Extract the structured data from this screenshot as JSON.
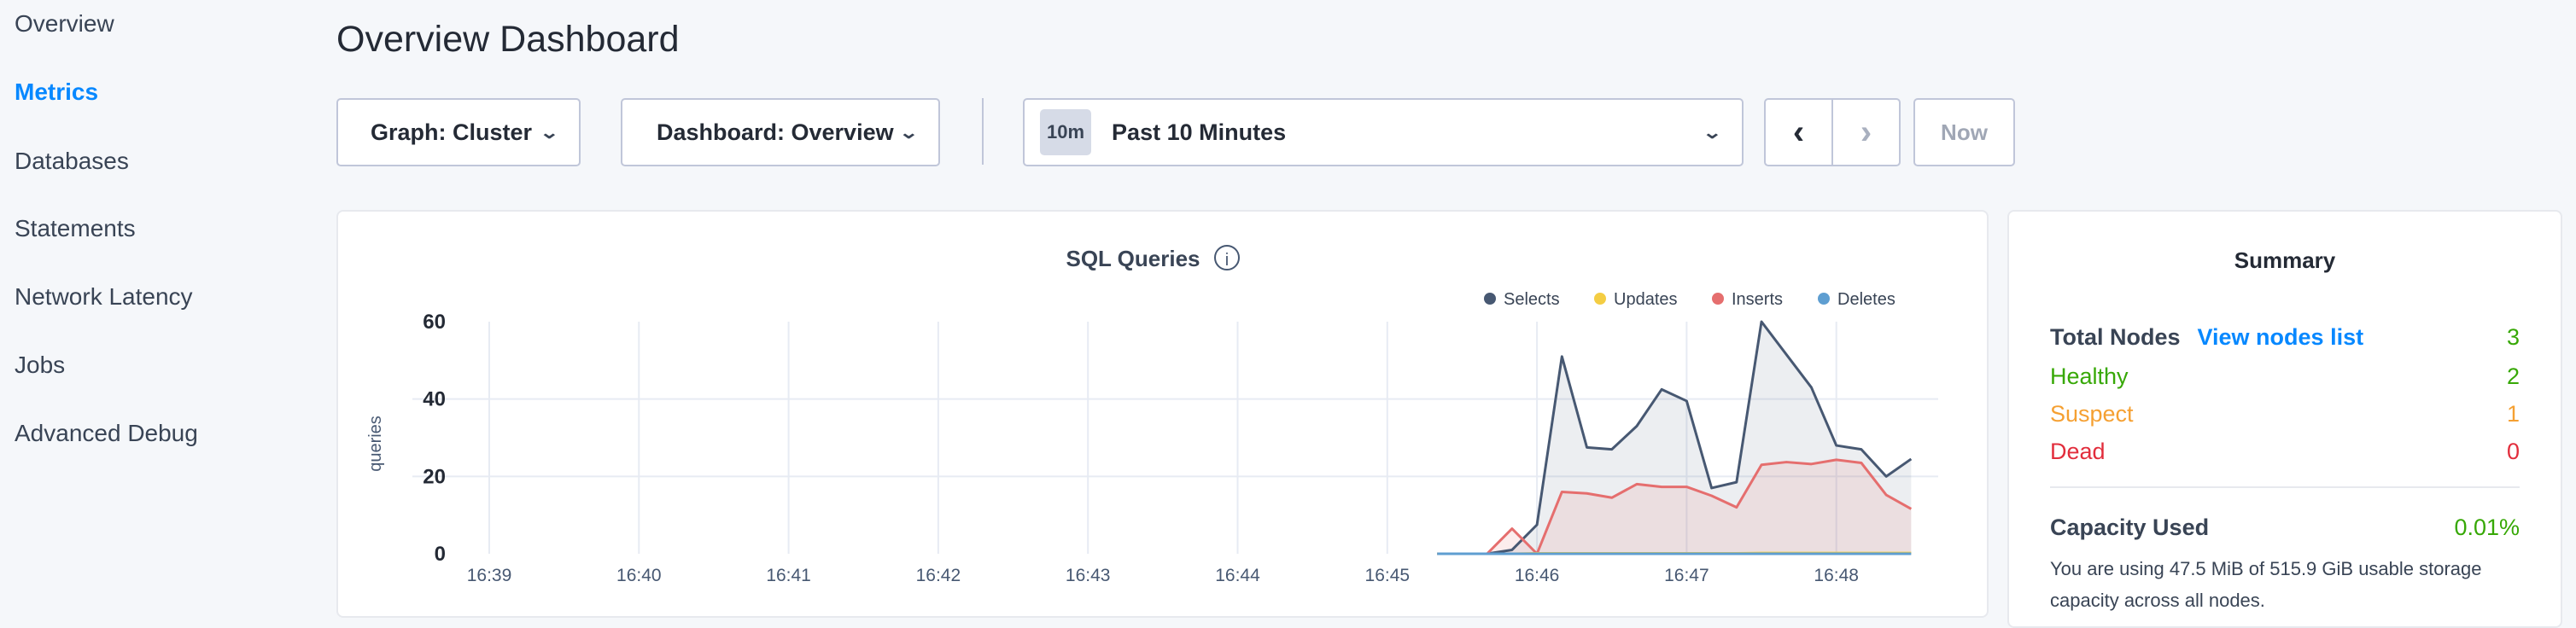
{
  "sidebar": {
    "items": [
      {
        "label": "Overview",
        "active": false
      },
      {
        "label": "Metrics",
        "active": true
      },
      {
        "label": "Databases",
        "active": false
      },
      {
        "label": "Statements",
        "active": false
      },
      {
        "label": "Network Latency",
        "active": false
      },
      {
        "label": "Jobs",
        "active": false
      },
      {
        "label": "Advanced Debug",
        "active": false
      }
    ]
  },
  "header": {
    "title": "Overview Dashboard"
  },
  "controls": {
    "graph": "Graph: Cluster",
    "dashboard": "Dashboard: Overview",
    "time_badge": "10m",
    "time_range": "Past 10 Minutes",
    "prev_icon": "chevron-left-icon",
    "next_icon": "chevron-right-icon",
    "now_label": "Now"
  },
  "chart_data": {
    "type": "area",
    "title": "SQL Queries",
    "ylabel": "queries",
    "xlabel": "",
    "ylim": [
      0,
      60
    ],
    "yticks": [
      "0",
      "20",
      "40",
      "60"
    ],
    "xticks": [
      "16:39",
      "16:40",
      "16:41",
      "16:42",
      "16:43",
      "16:44",
      "16:45",
      "16:46",
      "16:47",
      "16:48"
    ],
    "grid": true,
    "legend": "top-right",
    "x": [
      "16:45:20",
      "16:45:30",
      "16:45:40",
      "16:45:50",
      "16:46:00",
      "16:46:10",
      "16:46:20",
      "16:46:30",
      "16:46:40",
      "16:46:50",
      "16:47:00",
      "16:47:10",
      "16:47:20",
      "16:47:30",
      "16:47:40",
      "16:47:50",
      "16:48:00",
      "16:48:10",
      "16:48:20",
      "16:48:30"
    ],
    "series": [
      {
        "name": "Selects",
        "color": "#475872",
        "values": [
          0,
          0,
          0,
          1,
          7.5,
          51,
          27.5,
          27,
          33,
          42.5,
          39.5,
          17,
          18.5,
          60,
          51.5,
          43,
          28,
          27,
          20,
          24.5
        ]
      },
      {
        "name": "Updates",
        "color": "#f4cd43",
        "values": [
          0,
          0,
          0,
          0,
          0.1,
          0.1,
          0.1,
          0.1,
          0.1,
          0.1,
          0.1,
          0.1,
          0.1,
          0.2,
          0.2,
          0.2,
          0.2,
          0.2,
          0.2,
          0.2
        ]
      },
      {
        "name": "Inserts",
        "color": "#e56e6e",
        "values": [
          0,
          0,
          0,
          6.5,
          0,
          16,
          15.6,
          14.5,
          18,
          17.3,
          17.3,
          15,
          12,
          23,
          23.7,
          23.2,
          24.3,
          23.5,
          15.2,
          11.6
        ]
      },
      {
        "name": "Deletes",
        "color": "#5e9ed1",
        "values": [
          0,
          0,
          0,
          0,
          0,
          0,
          0,
          0,
          0,
          0,
          0,
          0,
          0,
          0,
          0,
          0,
          0,
          0,
          0,
          0
        ]
      }
    ]
  },
  "summary": {
    "title": "Summary",
    "total_nodes_label": "Total Nodes",
    "view_nodes_link": "View nodes list",
    "total_nodes": "3",
    "healthy_label": "Healthy",
    "healthy": "2",
    "suspect_label": "Suspect",
    "suspect": "1",
    "dead_label": "Dead",
    "dead": "0",
    "capacity_label": "Capacity Used",
    "capacity_value": "0.01%",
    "capacity_desc": "You are using 47.5 MiB of 515.9 GiB usable storage capacity across all nodes.",
    "colors": {
      "healthy": "#37a806",
      "suspect": "#f5a032",
      "dead": "#e22d3c",
      "link": "#0788ff"
    }
  }
}
